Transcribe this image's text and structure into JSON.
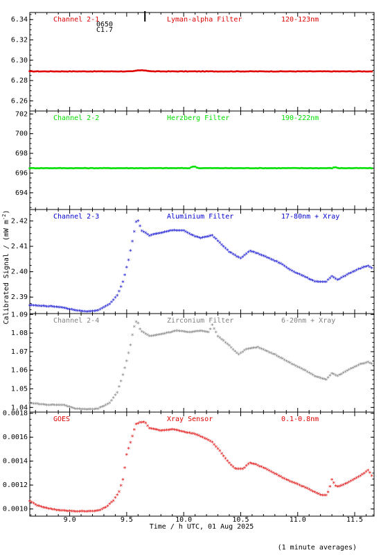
{
  "figure": {
    "ylabel": "Calibrated Signal / (mW m",
    "ylabel_sup": "-2",
    "ylabel_close": ")",
    "xlabel": "Time / h UTC, 01 Aug 2025",
    "footnote": "(1 minute averages)",
    "flare_annotation": {
      "time": "0650",
      "class": "C1.7",
      "x": 9.66
    }
  },
  "chart_data": [
    {
      "type": "scatter",
      "labels": [
        "Channel 2-1",
        "Lyman-alpha Filter",
        "120-123nm"
      ],
      "color": "#e00000",
      "xlim": [
        8.65,
        11.67
      ],
      "ylim": [
        6.25,
        6.347
      ],
      "yticks": [
        6.26,
        6.28,
        6.3,
        6.32,
        6.34
      ],
      "ytick_labels": [
        "6.26",
        "6.28",
        "6.30",
        "6.32",
        "6.34"
      ],
      "marker": "dots",
      "curve": [
        [
          8.65,
          6.289
        ],
        [
          9.55,
          6.289
        ],
        [
          9.6,
          6.29
        ],
        [
          9.66,
          6.29
        ],
        [
          9.72,
          6.289
        ],
        [
          11.67,
          6.289
        ]
      ]
    },
    {
      "type": "scatter",
      "labels": [
        "Channel 2-2",
        "Herzberg Filter",
        "190-222nm"
      ],
      "color": "#00e000",
      "xlim": [
        8.65,
        11.67
      ],
      "ylim": [
        692.3,
        702.3
      ],
      "yticks": [
        694,
        696,
        698,
        700,
        702
      ],
      "ytick_labels": [
        "694",
        "696",
        "698",
        "700",
        "702"
      ],
      "marker": "dots",
      "curve": [
        [
          8.65,
          696.5
        ],
        [
          10.05,
          696.5
        ],
        [
          10.09,
          696.7
        ],
        [
          10.13,
          696.5
        ],
        [
          11.3,
          696.5
        ],
        [
          11.33,
          696.6
        ],
        [
          11.36,
          696.5
        ],
        [
          11.67,
          696.5
        ]
      ]
    },
    {
      "type": "scatter",
      "labels": [
        "Channel 2-3",
        "Aluminium Filter",
        "17-80nm + Xray"
      ],
      "color": "#0000d0",
      "xlim": [
        8.65,
        11.67
      ],
      "ylim": [
        2.3835,
        2.4245
      ],
      "yticks": [
        2.39,
        2.4,
        2.41,
        2.42
      ],
      "ytick_labels": [
        "2.39",
        "2.40",
        "2.41",
        "2.42"
      ],
      "marker": "stars",
      "curve": [
        [
          8.65,
          2.3865
        ],
        [
          8.85,
          2.386
        ],
        [
          8.95,
          2.3855
        ],
        [
          9.05,
          2.3845
        ],
        [
          9.15,
          2.384
        ],
        [
          9.25,
          2.3845
        ],
        [
          9.35,
          2.387
        ],
        [
          9.42,
          2.3905
        ],
        [
          9.47,
          2.396
        ],
        [
          9.52,
          2.405
        ],
        [
          9.56,
          2.414
        ],
        [
          9.59,
          2.421
        ],
        [
          9.63,
          2.416
        ],
        [
          9.7,
          2.414
        ],
        [
          9.8,
          2.415
        ],
        [
          9.9,
          2.416
        ],
        [
          10.0,
          2.416
        ],
        [
          10.08,
          2.414
        ],
        [
          10.15,
          2.413
        ],
        [
          10.25,
          2.414
        ],
        [
          10.32,
          2.411
        ],
        [
          10.4,
          2.4075
        ],
        [
          10.5,
          2.405
        ],
        [
          10.58,
          2.408
        ],
        [
          10.7,
          2.406
        ],
        [
          10.85,
          2.403
        ],
        [
          10.95,
          2.4
        ],
        [
          11.05,
          2.398
        ],
        [
          11.15,
          2.3958
        ],
        [
          11.25,
          2.3958
        ],
        [
          11.3,
          2.398
        ],
        [
          11.35,
          2.3965
        ],
        [
          11.45,
          2.399
        ],
        [
          11.55,
          2.401
        ],
        [
          11.62,
          2.402
        ],
        [
          11.67,
          2.4005
        ]
      ]
    },
    {
      "type": "scatter",
      "labels": [
        "Channel 2-4",
        "Zirconium Filter",
        "6-20nm + Xray"
      ],
      "color": "#808080",
      "xlim": [
        8.65,
        11.67
      ],
      "ylim": [
        1.0375,
        1.0905
      ],
      "yticks": [
        1.04,
        1.05,
        1.06,
        1.07,
        1.08,
        1.09
      ],
      "ytick_labels": [
        "1.04",
        "1.05",
        "1.06",
        "1.07",
        "1.08",
        "1.09"
      ],
      "marker": "stars",
      "curve": [
        [
          8.65,
          1.042
        ],
        [
          8.8,
          1.041
        ],
        [
          8.95,
          1.041
        ],
        [
          9.05,
          1.039
        ],
        [
          9.15,
          1.0385
        ],
        [
          9.25,
          1.039
        ],
        [
          9.35,
          1.042
        ],
        [
          9.42,
          1.048
        ],
        [
          9.48,
          1.06
        ],
        [
          9.53,
          1.072
        ],
        [
          9.56,
          1.082
        ],
        [
          9.59,
          1.087
        ],
        [
          9.62,
          1.081
        ],
        [
          9.7,
          1.078
        ],
        [
          9.8,
          1.079
        ],
        [
          9.95,
          1.081
        ],
        [
          10.05,
          1.08
        ],
        [
          10.15,
          1.081
        ],
        [
          10.22,
          1.08
        ],
        [
          10.25,
          1.084
        ],
        [
          10.3,
          1.078
        ],
        [
          10.4,
          1.073
        ],
        [
          10.48,
          1.068
        ],
        [
          10.55,
          1.071
        ],
        [
          10.65,
          1.072
        ],
        [
          10.8,
          1.068
        ],
        [
          10.95,
          1.063
        ],
        [
          11.05,
          1.06
        ],
        [
          11.15,
          1.0565
        ],
        [
          11.25,
          1.0545
        ],
        [
          11.3,
          1.058
        ],
        [
          11.35,
          1.0565
        ],
        [
          11.45,
          1.06
        ],
        [
          11.55,
          1.063
        ],
        [
          11.62,
          1.064
        ],
        [
          11.67,
          1.0625
        ]
      ]
    },
    {
      "type": "scatter",
      "labels": [
        "GOES",
        "Xray Sensor",
        "0.1-0.8nm"
      ],
      "color": "#e00000",
      "xlim": [
        8.65,
        11.67
      ],
      "ylim": [
        0.00094,
        0.00181
      ],
      "yticks": [
        0.001,
        0.0012,
        0.0014,
        0.0016,
        0.0018
      ],
      "ytick_labels": [
        "0.0010",
        "0.0012",
        "0.0014",
        "0.0016",
        "0.0018"
      ],
      "marker": "stars",
      "curve": [
        [
          8.65,
          0.00106
        ],
        [
          8.72,
          0.00102
        ],
        [
          8.85,
          0.00099
        ],
        [
          8.95,
          0.00098
        ],
        [
          9.05,
          0.000975
        ],
        [
          9.15,
          0.000975
        ],
        [
          9.25,
          0.00098
        ],
        [
          9.32,
          0.00101
        ],
        [
          9.38,
          0.00106
        ],
        [
          9.43,
          0.00113
        ],
        [
          9.47,
          0.00125
        ],
        [
          9.5,
          0.00145
        ],
        [
          9.55,
          0.0016
        ],
        [
          9.58,
          0.0017
        ],
        [
          9.62,
          0.00172
        ],
        [
          9.66,
          0.00172
        ],
        [
          9.7,
          0.00167
        ],
        [
          9.8,
          0.00165
        ],
        [
          9.9,
          0.00166
        ],
        [
          10.0,
          0.00164
        ],
        [
          10.1,
          0.00162
        ],
        [
          10.2,
          0.00158
        ],
        [
          10.25,
          0.00155
        ],
        [
          10.3,
          0.0015
        ],
        [
          10.38,
          0.0014
        ],
        [
          10.45,
          0.00133
        ],
        [
          10.52,
          0.00133
        ],
        [
          10.58,
          0.00138
        ],
        [
          10.62,
          0.00137
        ],
        [
          10.7,
          0.00134
        ],
        [
          10.8,
          0.00129
        ],
        [
          10.9,
          0.00124
        ],
        [
          11.0,
          0.0012
        ],
        [
          11.1,
          0.00116
        ],
        [
          11.2,
          0.00111
        ],
        [
          11.25,
          0.00111
        ],
        [
          11.27,
          0.00114
        ],
        [
          11.3,
          0.00124
        ],
        [
          11.33,
          0.00119
        ],
        [
          11.36,
          0.00118
        ],
        [
          11.45,
          0.00122
        ],
        [
          11.55,
          0.00127
        ],
        [
          11.62,
          0.00132
        ],
        [
          11.67,
          0.00124
        ]
      ]
    }
  ],
  "xaxis": {
    "ticks": [
      9.0,
      9.5,
      10.0,
      10.5,
      11.0,
      11.5
    ],
    "tick_labels": [
      "9.0",
      "9.5",
      "10.0",
      "10.5",
      "11.0",
      "11.5"
    ]
  }
}
